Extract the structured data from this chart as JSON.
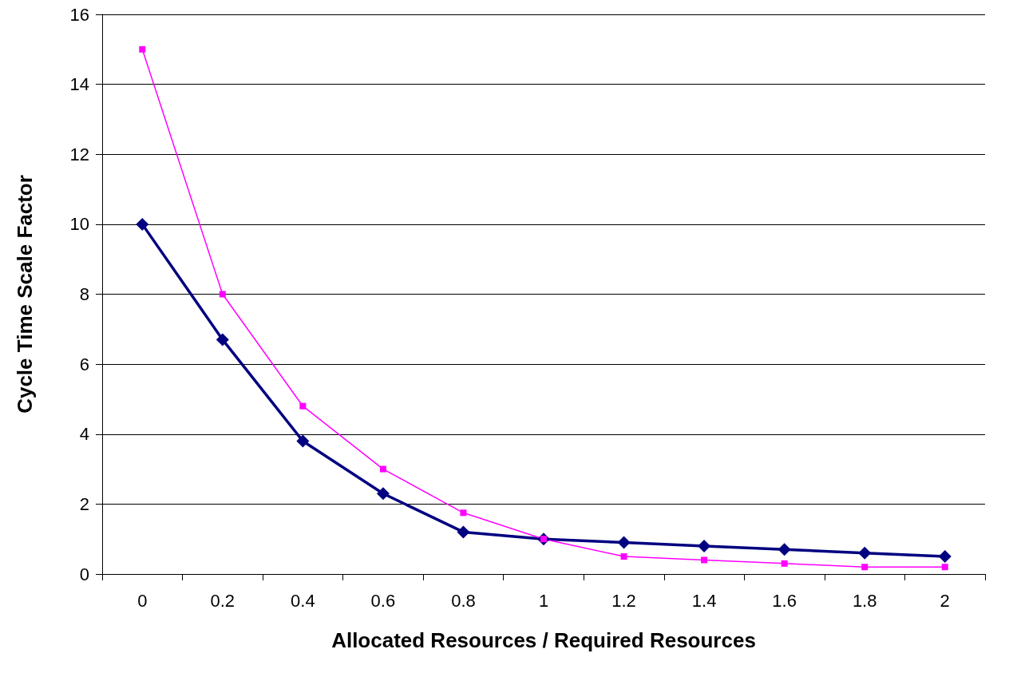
{
  "chart_data": {
    "type": "line",
    "xlabel": "Allocated Resources / Required Resources",
    "ylabel": "Cycle Time Scale Factor",
    "categories": [
      "0",
      "0.2",
      "0.4",
      "0.6",
      "0.8",
      "1",
      "1.2",
      "1.4",
      "1.6",
      "1.8",
      "2"
    ],
    "series": [
      {
        "color": "#000080",
        "marker": "diamond",
        "values": [
          10,
          6.7,
          3.8,
          2.3,
          1.2,
          1.0,
          0.9,
          0.8,
          0.7,
          0.6,
          0.5
        ]
      },
      {
        "color": "#ff00ff",
        "marker": "square",
        "values": [
          15,
          8,
          4.8,
          3.0,
          1.75,
          1.0,
          0.5,
          0.4,
          0.3,
          0.2,
          0.2
        ]
      }
    ],
    "ylim": [
      0,
      16
    ],
    "yticks": [
      0,
      2,
      4,
      6,
      8,
      10,
      12,
      14,
      16
    ],
    "grid": "y"
  }
}
